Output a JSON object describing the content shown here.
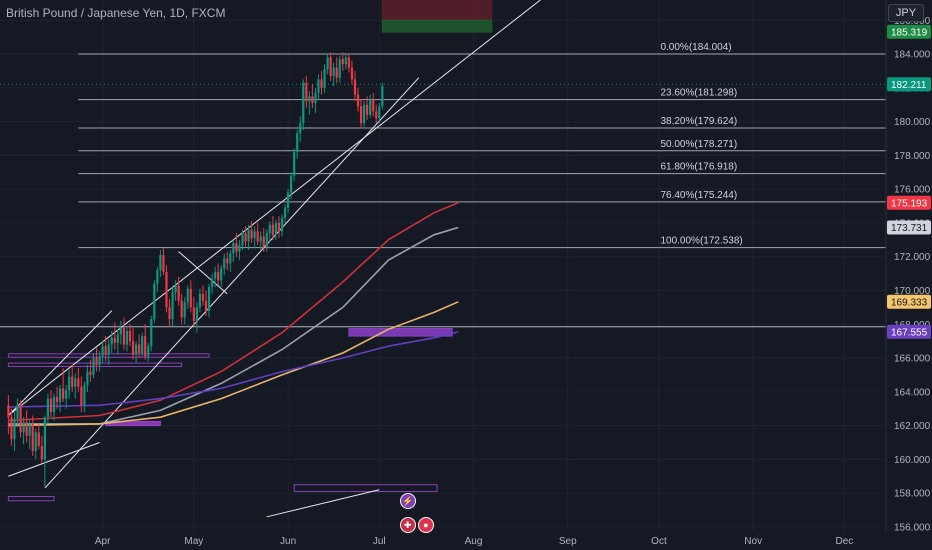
{
  "header": {
    "title": "British Pound / Japanese Yen, 1D, FXCM",
    "currency": "JPY"
  },
  "chart_data": {
    "type": "candlestick",
    "title": "British Pound / Japanese Yen, 1D, FXCM",
    "ylim": [
      155.7,
      187.2
    ],
    "y_ticks": [
      156,
      158,
      160,
      162,
      164,
      166,
      168,
      170,
      172,
      174,
      176,
      178,
      180,
      182,
      184,
      186
    ],
    "y_tick_labels": [
      "156.000",
      "158.000",
      "160.000",
      "162.000",
      "164.000",
      "166.000",
      "168.000",
      "170.000",
      "172.000",
      "174.000",
      "176.000",
      "178.000",
      "180.000",
      "182.000",
      "184.000",
      "186.000"
    ],
    "x_labels": [
      {
        "label": "Apr",
        "day": 31
      },
      {
        "label": "May",
        "day": 61
      },
      {
        "label": "Jun",
        "day": 92
      },
      {
        "label": "Jul",
        "day": 122
      },
      {
        "label": "Aug",
        "day": 153
      },
      {
        "label": "Sep",
        "day": 184
      },
      {
        "label": "Oct",
        "day": 214
      },
      {
        "label": "Nov",
        "day": 245
      },
      {
        "label": "Dec",
        "day": 275
      }
    ],
    "fib_levels": [
      {
        "label": "0.00%(184.004)",
        "value": 184.004
      },
      {
        "label": "23.60%(181.298)",
        "value": 181.298
      },
      {
        "label": "38.20%(179.624)",
        "value": 179.624
      },
      {
        "label": "50.00%(178.271)",
        "value": 178.271
      },
      {
        "label": "61.80%(176.918)",
        "value": 176.918
      },
      {
        "label": "76.40%(175.244)",
        "value": 175.244
      },
      {
        "label": "100.00%(172.538)",
        "value": 172.538
      }
    ],
    "price_labels": [
      {
        "text": "185.319",
        "value": 185.319,
        "color": "#1e8c45",
        "text_color": "#ffffff"
      },
      {
        "text": "182.211",
        "value": 182.211,
        "color": "#089981",
        "text_color": "#ffffff"
      },
      {
        "text": "175.193",
        "value": 175.193,
        "color": "#f23645",
        "text_color": "#ffffff"
      },
      {
        "text": "173.731",
        "value": 173.731,
        "color": "#d1d4dc",
        "text_color": "#131722"
      },
      {
        "text": "169.333",
        "value": 169.333,
        "color": "#f7c56b",
        "text_color": "#131722"
      },
      {
        "text": "167.555",
        "value": 167.555,
        "color": "#6a3fc0",
        "text_color": "#ffffff"
      }
    ],
    "horizontal_lines": [
      {
        "value": 182.211,
        "style": "dotted",
        "color": "#089981"
      },
      {
        "value": 167.85,
        "style": "solid",
        "color": "#b2b5be"
      }
    ],
    "channel": {
      "upper": [
        [
          0,
          162.6
        ],
        [
          175,
          187.2
        ]
      ],
      "lower": [
        [
          12,
          158.3
        ],
        [
          135,
          182.6
        ]
      ],
      "upper_short": [
        [
          0,
          162.6
        ],
        [
          34,
          168.8
        ]
      ]
    },
    "zigzag_lines": [
      [
        [
          56,
          172.3
        ],
        [
          72,
          169.8
        ]
      ],
      [
        [
          85,
          156.6
        ],
        [
          122,
          158.2
        ]
      ],
      [
        [
          0,
          159.0
        ],
        [
          30,
          161.0
        ]
      ]
    ],
    "moving_averages": [
      {
        "color": "#d0303b",
        "points": [
          [
            0,
            162.3
          ],
          [
            30,
            162.6
          ],
          [
            50,
            163.5
          ],
          [
            70,
            165.2
          ],
          [
            90,
            167.5
          ],
          [
            110,
            170.5
          ],
          [
            125,
            173.0
          ],
          [
            140,
            174.6
          ],
          [
            148,
            175.19
          ]
        ]
      },
      {
        "color": "#9aa3ad",
        "points": [
          [
            0,
            162.1
          ],
          [
            30,
            162.1
          ],
          [
            50,
            162.9
          ],
          [
            70,
            164.5
          ],
          [
            90,
            166.5
          ],
          [
            110,
            169.0
          ],
          [
            125,
            171.8
          ],
          [
            140,
            173.3
          ],
          [
            148,
            173.73
          ]
        ]
      },
      {
        "color": "#e8b56a",
        "points": [
          [
            0,
            162.0
          ],
          [
            30,
            162.1
          ],
          [
            50,
            162.5
          ],
          [
            70,
            163.6
          ],
          [
            90,
            165.0
          ],
          [
            110,
            166.3
          ],
          [
            125,
            167.7
          ],
          [
            140,
            168.7
          ],
          [
            148,
            169.33
          ]
        ]
      },
      {
        "color": "#6040c0",
        "points": [
          [
            0,
            163.1
          ],
          [
            30,
            163.2
          ],
          [
            50,
            163.6
          ],
          [
            70,
            164.2
          ],
          [
            90,
            165.2
          ],
          [
            110,
            166.0
          ],
          [
            125,
            166.7
          ],
          [
            140,
            167.2
          ],
          [
            148,
            167.55
          ]
        ]
      }
    ],
    "zones": [
      {
        "x0": 0,
        "x1": 66,
        "y0": 166.25,
        "y1": 166.05,
        "color": "#8a3fb8",
        "filled": false
      },
      {
        "x0": 0,
        "x1": 57,
        "y0": 165.7,
        "y1": 165.5,
        "color": "#8a3fb8",
        "filled": false
      },
      {
        "x0": 32,
        "x1": 50,
        "y0": 162.25,
        "y1": 162.0,
        "color": "#9b40c8",
        "filled": true
      },
      {
        "x0": 112,
        "x1": 146,
        "y0": 167.75,
        "y1": 167.3,
        "color": "#8b3fc8",
        "filled": true
      },
      {
        "x0": 94,
        "x1": 141,
        "y0": 158.5,
        "y1": 158.1,
        "color": "#8a3fb8",
        "filled": false
      },
      {
        "x0": 0,
        "x1": 15,
        "y0": 157.8,
        "y1": 157.55,
        "color": "#8a3fb8",
        "filled": false
      },
      {
        "x0": 123,
        "x1": 159,
        "y0": 187.2,
        "y1": 186.0,
        "color": "#5c1f2a",
        "filled": true
      },
      {
        "x0": 123,
        "x1": 159,
        "y0": 186.0,
        "y1": 185.3,
        "color": "#1e5a2e",
        "filled": true
      }
    ],
    "candles": [
      [
        0,
        163.2,
        163.8,
        161.5,
        162.5
      ],
      [
        1,
        162.5,
        163.0,
        160.8,
        161.2
      ],
      [
        2,
        161.2,
        162.8,
        160.5,
        162.4
      ],
      [
        3,
        162.4,
        163.6,
        161.9,
        163.2
      ],
      [
        4,
        163.2,
        163.5,
        161.3,
        161.6
      ],
      [
        5,
        161.6,
        162.5,
        160.9,
        162.2
      ],
      [
        6,
        162.2,
        162.9,
        161.0,
        161.4
      ],
      [
        7,
        161.4,
        162.4,
        160.6,
        162.1
      ],
      [
        8,
        162.1,
        162.6,
        160.2,
        160.5
      ],
      [
        9,
        160.5,
        161.8,
        160.0,
        161.6
      ],
      [
        10,
        161.6,
        162.1,
        160.6,
        160.8
      ],
      [
        11,
        160.8,
        161.4,
        159.8,
        160.0
      ],
      [
        12,
        160.0,
        162.6,
        158.4,
        162.5
      ],
      [
        13,
        162.5,
        163.9,
        162.1,
        163.6
      ],
      [
        14,
        163.6,
        164.1,
        162.5,
        162.8
      ],
      [
        15,
        162.8,
        163.9,
        162.3,
        163.7
      ],
      [
        16,
        163.7,
        164.3,
        163.0,
        163.4
      ],
      [
        17,
        163.4,
        164.4,
        162.8,
        164.2
      ],
      [
        18,
        164.2,
        165.4,
        163.4,
        163.6
      ],
      [
        19,
        163.6,
        164.4,
        163.0,
        164.1
      ],
      [
        20,
        164.1,
        165.3,
        163.6,
        164.9
      ],
      [
        21,
        164.9,
        165.6,
        164.0,
        164.3
      ],
      [
        22,
        164.3,
        165.1,
        163.6,
        164.8
      ],
      [
        23,
        164.8,
        165.4,
        164.0,
        164.3
      ],
      [
        24,
        164.3,
        164.9,
        162.8,
        163.2
      ],
      [
        25,
        163.2,
        164.6,
        162.8,
        164.4
      ],
      [
        26,
        164.4,
        165.6,
        164.0,
        165.2
      ],
      [
        27,
        165.2,
        165.9,
        164.6,
        165.0
      ],
      [
        28,
        165.0,
        166.3,
        164.8,
        166.0
      ],
      [
        29,
        166.0,
        166.6,
        165.2,
        165.6
      ],
      [
        30,
        165.6,
        166.4,
        165.2,
        166.1
      ],
      [
        31,
        166.1,
        167.0,
        165.7,
        166.7
      ],
      [
        32,
        166.7,
        167.3,
        165.8,
        166.2
      ],
      [
        33,
        166.2,
        167.1,
        165.6,
        166.8
      ],
      [
        34,
        166.8,
        167.6,
        166.3,
        167.2
      ],
      [
        35,
        167.2,
        168.1,
        166.5,
        166.9
      ],
      [
        36,
        166.9,
        167.7,
        166.2,
        167.4
      ],
      [
        37,
        167.4,
        168.2,
        166.8,
        167.8
      ],
      [
        38,
        167.8,
        168.4,
        166.5,
        166.8
      ],
      [
        39,
        166.8,
        167.9,
        166.4,
        167.6
      ],
      [
        40,
        167.6,
        168.0,
        166.7,
        167.0
      ],
      [
        41,
        167.0,
        167.8,
        165.9,
        166.2
      ],
      [
        42,
        166.2,
        167.0,
        165.7,
        166.8
      ],
      [
        43,
        166.8,
        167.4,
        166.0,
        166.3
      ],
      [
        44,
        166.3,
        167.5,
        166.1,
        167.3
      ],
      [
        45,
        167.3,
        168.0,
        165.9,
        166.1
      ],
      [
        46,
        166.1,
        166.9,
        165.8,
        166.7
      ],
      [
        47,
        166.7,
        168.5,
        166.4,
        168.3
      ],
      [
        48,
        168.3,
        170.6,
        168.1,
        170.4
      ],
      [
        49,
        170.4,
        171.4,
        169.9,
        171.2
      ],
      [
        50,
        171.2,
        172.4,
        170.8,
        172.1
      ],
      [
        51,
        172.1,
        172.5,
        170.9,
        171.1
      ],
      [
        52,
        171.1,
        171.5,
        168.7,
        169.0
      ],
      [
        53,
        169.0,
        169.5,
        167.8,
        168.3
      ],
      [
        54,
        168.3,
        170.2,
        167.9,
        169.9
      ],
      [
        55,
        169.9,
        170.6,
        169.4,
        170.3
      ],
      [
        56,
        170.3,
        170.8,
        169.1,
        169.4
      ],
      [
        57,
        169.4,
        169.8,
        168.0,
        168.4
      ],
      [
        58,
        168.4,
        169.6,
        168.0,
        169.3
      ],
      [
        59,
        169.3,
        170.3,
        168.9,
        170.1
      ],
      [
        60,
        170.1,
        170.6,
        168.7,
        169.0
      ],
      [
        61,
        169.0,
        169.6,
        167.9,
        168.2
      ],
      [
        62,
        168.2,
        169.3,
        167.5,
        169.0
      ],
      [
        63,
        169.0,
        170.1,
        168.7,
        169.8
      ],
      [
        64,
        169.8,
        170.3,
        169.1,
        169.4
      ],
      [
        65,
        169.4,
        170.0,
        168.5,
        168.8
      ],
      [
        66,
        168.8,
        170.4,
        168.4,
        170.2
      ],
      [
        67,
        170.2,
        171.0,
        169.8,
        170.7
      ],
      [
        68,
        170.7,
        171.4,
        170.2,
        171.1
      ],
      [
        69,
        171.1,
        171.6,
        170.3,
        170.6
      ],
      [
        70,
        170.6,
        171.5,
        170.2,
        171.3
      ],
      [
        71,
        171.3,
        172.2,
        170.9,
        171.9
      ],
      [
        72,
        171.9,
        172.3,
        171.2,
        171.6
      ],
      [
        73,
        171.6,
        172.4,
        171.1,
        172.2
      ],
      [
        74,
        172.2,
        173.0,
        171.7,
        172.8
      ],
      [
        75,
        172.8,
        173.4,
        172.0,
        172.3
      ],
      [
        76,
        172.3,
        173.0,
        171.8,
        172.7
      ],
      [
        77,
        172.7,
        173.6,
        172.4,
        173.4
      ],
      [
        78,
        173.4,
        173.8,
        172.6,
        172.9
      ],
      [
        79,
        172.9,
        173.9,
        172.4,
        173.6
      ],
      [
        80,
        173.6,
        174.1,
        172.8,
        173.1
      ],
      [
        81,
        173.1,
        173.8,
        172.5,
        173.5
      ],
      [
        82,
        173.5,
        174.0,
        172.7,
        172.9
      ],
      [
        83,
        172.9,
        173.5,
        172.4,
        173.2
      ],
      [
        84,
        173.2,
        173.7,
        172.3,
        172.6
      ],
      [
        85,
        172.6,
        173.6,
        172.3,
        173.4
      ],
      [
        86,
        173.4,
        174.1,
        172.9,
        173.9
      ],
      [
        87,
        173.9,
        174.4,
        173.0,
        173.3
      ],
      [
        88,
        173.3,
        174.2,
        173.0,
        174.0
      ],
      [
        89,
        174.0,
        174.4,
        173.1,
        173.5
      ],
      [
        90,
        173.5,
        174.5,
        173.2,
        174.3
      ],
      [
        91,
        174.3,
        175.1,
        174.0,
        174.9
      ],
      [
        92,
        174.9,
        176.0,
        174.6,
        175.8
      ],
      [
        93,
        175.8,
        177.0,
        175.4,
        176.8
      ],
      [
        94,
        176.8,
        178.4,
        176.5,
        178.2
      ],
      [
        95,
        178.2,
        179.5,
        177.8,
        179.3
      ],
      [
        96,
        179.3,
        180.3,
        178.8,
        179.9
      ],
      [
        97,
        179.9,
        182.5,
        179.5,
        182.3
      ],
      [
        98,
        182.3,
        182.7,
        180.8,
        181.2
      ],
      [
        99,
        181.2,
        181.8,
        180.4,
        181.5
      ],
      [
        100,
        181.5,
        182.2,
        180.8,
        181.1
      ],
      [
        101,
        181.1,
        182.0,
        180.5,
        181.7
      ],
      [
        102,
        181.7,
        182.8,
        181.3,
        182.5
      ],
      [
        103,
        182.5,
        183.0,
        181.6,
        182.0
      ],
      [
        104,
        182.0,
        183.4,
        181.7,
        183.1
      ],
      [
        105,
        183.1,
        184.0,
        182.8,
        183.8
      ],
      [
        106,
        183.8,
        184.1,
        182.4,
        182.7
      ],
      [
        107,
        182.7,
        183.5,
        182.1,
        183.2
      ],
      [
        108,
        183.2,
        183.8,
        182.3,
        182.6
      ],
      [
        109,
        182.6,
        183.9,
        182.3,
        183.7
      ],
      [
        110,
        183.7,
        184.1,
        183.0,
        183.4
      ],
      [
        111,
        183.4,
        184.0,
        183.1,
        183.8
      ],
      [
        112,
        183.8,
        184.0,
        182.9,
        183.2
      ],
      [
        113,
        183.2,
        183.6,
        182.2,
        182.5
      ],
      [
        114,
        182.5,
        183.0,
        181.2,
        181.6
      ],
      [
        115,
        181.6,
        182.0,
        180.6,
        180.9
      ],
      [
        116,
        180.9,
        181.3,
        179.6,
        179.9
      ],
      [
        117,
        179.9,
        181.2,
        179.7,
        181.0
      ],
      [
        118,
        181.0,
        181.5,
        180.1,
        180.4
      ],
      [
        119,
        180.4,
        181.6,
        180.2,
        181.3
      ],
      [
        120,
        181.3,
        181.7,
        180.3,
        180.6
      ],
      [
        121,
        180.6,
        181.0,
        179.9,
        180.2
      ],
      [
        122,
        180.2,
        181.1,
        179.9,
        180.9
      ],
      [
        123,
        180.9,
        182.3,
        180.7,
        182.1
      ]
    ]
  },
  "events": [
    {
      "icon": "lightning-icon",
      "symbol": "⚡",
      "day": 131,
      "value": 157.6,
      "color": "#7b3fb8"
    },
    {
      "icon": "flag-uk-icon",
      "symbol": "✚",
      "day": 131,
      "value": 156.2,
      "color": "#c0304a"
    },
    {
      "icon": "flag-jp-icon",
      "symbol": "●",
      "day": 137,
      "value": 156.2,
      "color": "#e0314f"
    }
  ]
}
